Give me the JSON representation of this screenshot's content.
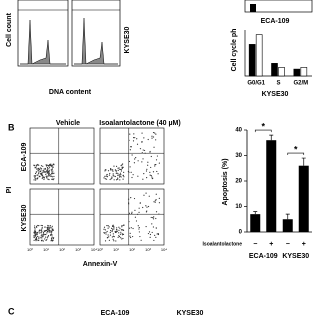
{
  "panel_a": {
    "y_label": "Cell count",
    "x_label": "DNA content",
    "row_label": "KYSE30",
    "bar_title_top": "ECA-109",
    "bar_y_label": "Cell cycle ph",
    "categories": [
      "G0/G1",
      "S",
      "G2/M"
    ],
    "bar_title": "KYSE30",
    "series": [
      {
        "color": "#000000",
        "values": [
          55,
          22,
          12
        ]
      },
      {
        "color": "#ffffff",
        "values": [
          72,
          15,
          15
        ]
      }
    ]
  },
  "panel_b": {
    "label": "B",
    "columns": [
      "Vehicle",
      "Isoalantolactone (40 µM)"
    ],
    "rows": [
      "ECA-109",
      "KYSE30"
    ],
    "y_label": "PI",
    "x_label": "Annexin-V",
    "x_ticks": [
      "10⁰",
      "10¹",
      "10²",
      "10³",
      "10⁴"
    ],
    "chart": {
      "y_label": "Apoptosis (%)",
      "ylim": [
        0,
        40
      ],
      "yticks": [
        0,
        10,
        20,
        30,
        40
      ],
      "treatment_label": "Isoalantolactone",
      "treatment_levels": [
        "−",
        "+"
      ],
      "groups": [
        "ECA-109",
        "KYSE30"
      ],
      "values": [
        [
          7,
          36
        ],
        [
          5,
          26
        ]
      ],
      "errors": [
        [
          1,
          2
        ],
        [
          2,
          3
        ]
      ],
      "significance": [
        "*",
        "*"
      ]
    }
  },
  "panel_c": {
    "label": "C",
    "columns": [
      "ECA-109",
      "KYSE30"
    ]
  }
}
